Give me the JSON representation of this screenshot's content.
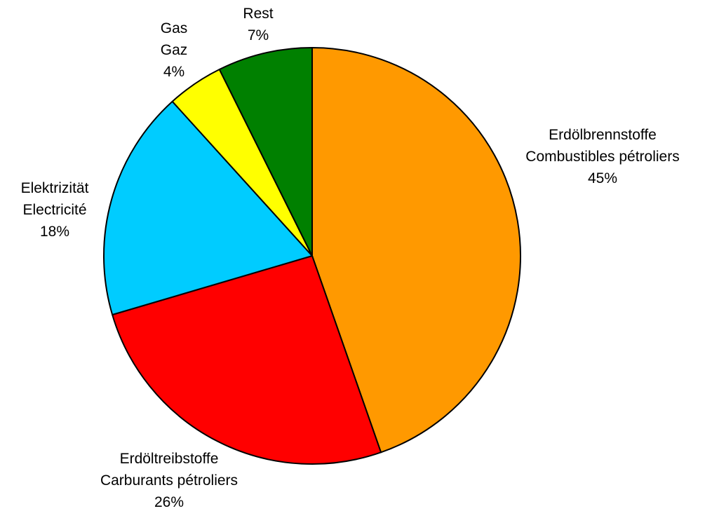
{
  "chart_data": {
    "type": "pie",
    "title": "",
    "start_angle_deg": 0,
    "direction": "clockwise",
    "slices": [
      {
        "label_de": "Erdölbrennstoffe",
        "label_fr": "Combustibles pétroliers",
        "percent_label": "45%",
        "value": 45,
        "color": "#FF9900"
      },
      {
        "label_de": "Erdöltreibstoffe",
        "label_fr": "Carburants pétroliers",
        "percent_label": "26%",
        "value": 26,
        "color": "#FF0000"
      },
      {
        "label_de": "Elektrizität",
        "label_fr": "Electricité",
        "percent_label": "18%",
        "value": 18,
        "color": "#00CCFF"
      },
      {
        "label_de": "Gas",
        "label_fr": "Gaz",
        "percent_label": "4%",
        "value": 4.4,
        "color": "#FFFF00"
      },
      {
        "label_de": "Rest",
        "label_fr": "",
        "percent_label": "7%",
        "value": 7.4,
        "color": "#008000"
      }
    ]
  }
}
